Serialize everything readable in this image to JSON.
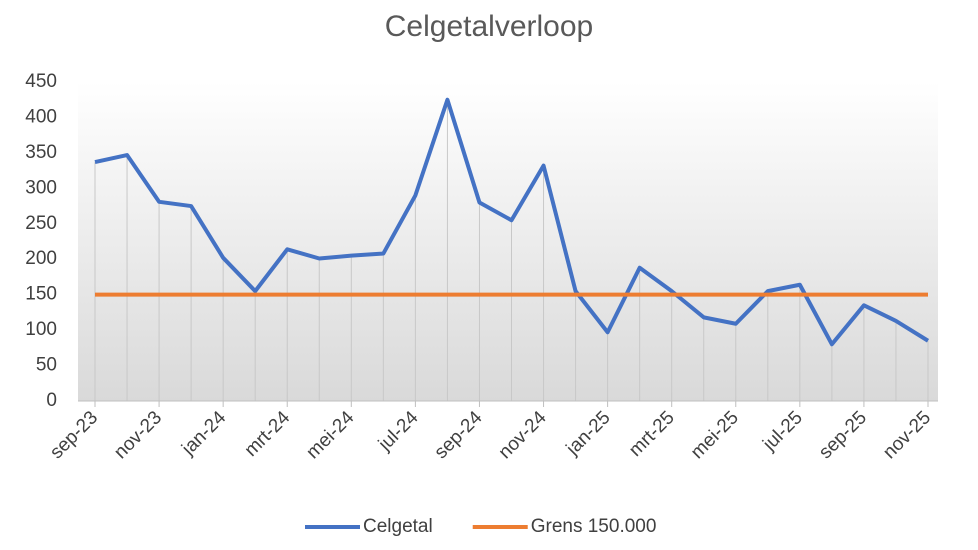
{
  "chart_data": {
    "type": "line",
    "title": "Celgetalverloop",
    "categories": [
      "sep-23",
      null,
      "nov-23",
      null,
      "jan-24",
      null,
      "mrt-24",
      null,
      "mei-24",
      null,
      "jul-24",
      null,
      "sep-24",
      null,
      "nov-24",
      null,
      "jan-25",
      null,
      "mrt-25",
      null,
      "mei-25",
      null,
      "jul-25",
      null,
      "sep-25",
      null,
      "nov-25"
    ],
    "series": [
      {
        "name": "Celgetal",
        "color": "#4472c4",
        "values": [
          337,
          347,
          281,
          275,
          202,
          155,
          214,
          201,
          205,
          208,
          290,
          425,
          280,
          255,
          332,
          155,
          97,
          188,
          155,
          118,
          109,
          155,
          164,
          80,
          135,
          113,
          85
        ]
      },
      {
        "name": "Grens 150.000",
        "color": "#ed7d31",
        "values": [
          150,
          150,
          150,
          150,
          150,
          150,
          150,
          150,
          150,
          150,
          150,
          150,
          150,
          150,
          150,
          150,
          150,
          150,
          150,
          150,
          150,
          150,
          150,
          150,
          150,
          150,
          150
        ]
      }
    ],
    "ylim": [
      0,
      450
    ],
    "yticks": [
      0,
      50,
      100,
      150,
      200,
      250,
      300,
      350,
      400,
      450
    ],
    "legend": "bottom"
  }
}
